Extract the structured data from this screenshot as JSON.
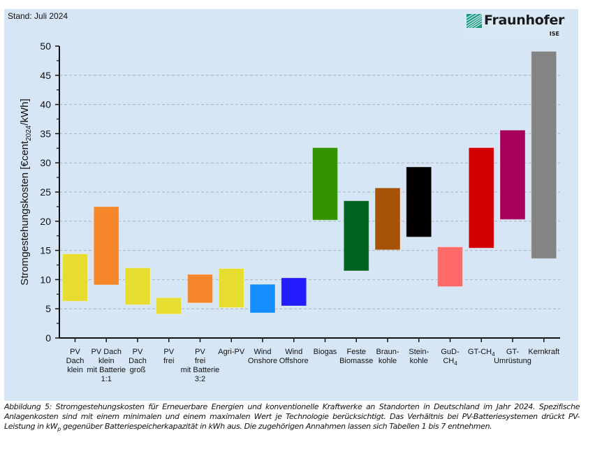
{
  "header": {
    "stand": "Stand: Juli 2024",
    "logo_name": "Fraunhofer",
    "logo_sub": "ISE",
    "logo_color": "#179c7d"
  },
  "caption": {
    "part1": "Abbildung 5: Stromgestehungskosten für Erneuerbare Energien und konventionelle Kraftwerke an Standorten in Deutschland im Jahr 2024. Spezifische Anlagenkosten sind mit einem minimalen und einem maximalen Wert je Technologie berücksichtigt. Das Verhältnis bei PV-Batteriesystemen drückt PV-Leistung in kW",
    "sub": "p",
    "part2": " gegenüber Batteriespeicherkapazität in kWh aus. Die zugehörigen Annahmen lassen sich Tabellen 1 bis 7 entnehmen."
  },
  "chart_data": {
    "type": "bar",
    "subtype": "floating-range",
    "title": "",
    "xlabel": "",
    "ylabel": "Stromgestehungskosten [€cent2024/kWh]",
    "ylabel_parts": {
      "pre": "Stromgestehungskosten [€cent",
      "sub": "2024",
      "post": "/kWh]"
    },
    "ylim": [
      0,
      50
    ],
    "yticks": [
      0,
      5,
      10,
      15,
      20,
      25,
      30,
      35,
      40,
      45,
      50
    ],
    "grid": "horizontal-dashed",
    "legend": "none",
    "categories": [
      {
        "lines": [
          "PV",
          "Dach",
          "klein"
        ],
        "min": 6.3,
        "max": 14.4,
        "color": "#e6dd30"
      },
      {
        "lines": [
          "PV Dach",
          "klein",
          "mit Batterie",
          "1:1"
        ],
        "min": 9.1,
        "max": 22.5,
        "color": "#f5862a"
      },
      {
        "lines": [
          "PV",
          "Dach",
          "groß"
        ],
        "min": 5.7,
        "max": 12.0,
        "color": "#e6dd30"
      },
      {
        "lines": [
          "PV",
          "frei"
        ],
        "min": 4.1,
        "max": 6.9,
        "color": "#e6dd30"
      },
      {
        "lines": [
          "PV",
          "frei",
          "mit Batterie",
          "3:2"
        ],
        "min": 6.0,
        "max": 10.9,
        "color": "#f5862a"
      },
      {
        "lines": [
          "Agri-PV"
        ],
        "min": 5.2,
        "max": 11.9,
        "color": "#e6dd30"
      },
      {
        "lines": [
          "Wind",
          "Onshore"
        ],
        "min": 4.3,
        "max": 9.2,
        "color": "#168eff"
      },
      {
        "lines": [
          "Wind",
          "Offshore"
        ],
        "min": 5.5,
        "max": 10.3,
        "color": "#221cff"
      },
      {
        "lines": [
          "Biogas"
        ],
        "min": 20.2,
        "max": 32.6,
        "color": "#339400"
      },
      {
        "lines": [
          "Feste",
          "Biomasse"
        ],
        "min": 11.5,
        "max": 23.5,
        "color": "#00621f"
      },
      {
        "lines": [
          "Braun-",
          "kohle"
        ],
        "min": 15.1,
        "max": 25.7,
        "color": "#a65308"
      },
      {
        "lines": [
          "Stein-",
          "kohle"
        ],
        "min": 17.3,
        "max": 29.3,
        "color": "#000000"
      },
      {
        "lines": [
          "GuD-",
          "CH4"
        ],
        "min": 8.8,
        "max": 15.6,
        "color": "#ff6969"
      },
      {
        "lines": [
          "GT-CH4"
        ],
        "min": 15.4,
        "max": 32.6,
        "color": "#d30000"
      },
      {
        "lines": [
          "GT-",
          "Umrüstung"
        ],
        "min": 20.3,
        "max": 35.6,
        "color": "#a5005a"
      },
      {
        "lines": [
          "Kernkraft"
        ],
        "min": 13.6,
        "max": 49.1,
        "color": "#848484"
      }
    ]
  }
}
